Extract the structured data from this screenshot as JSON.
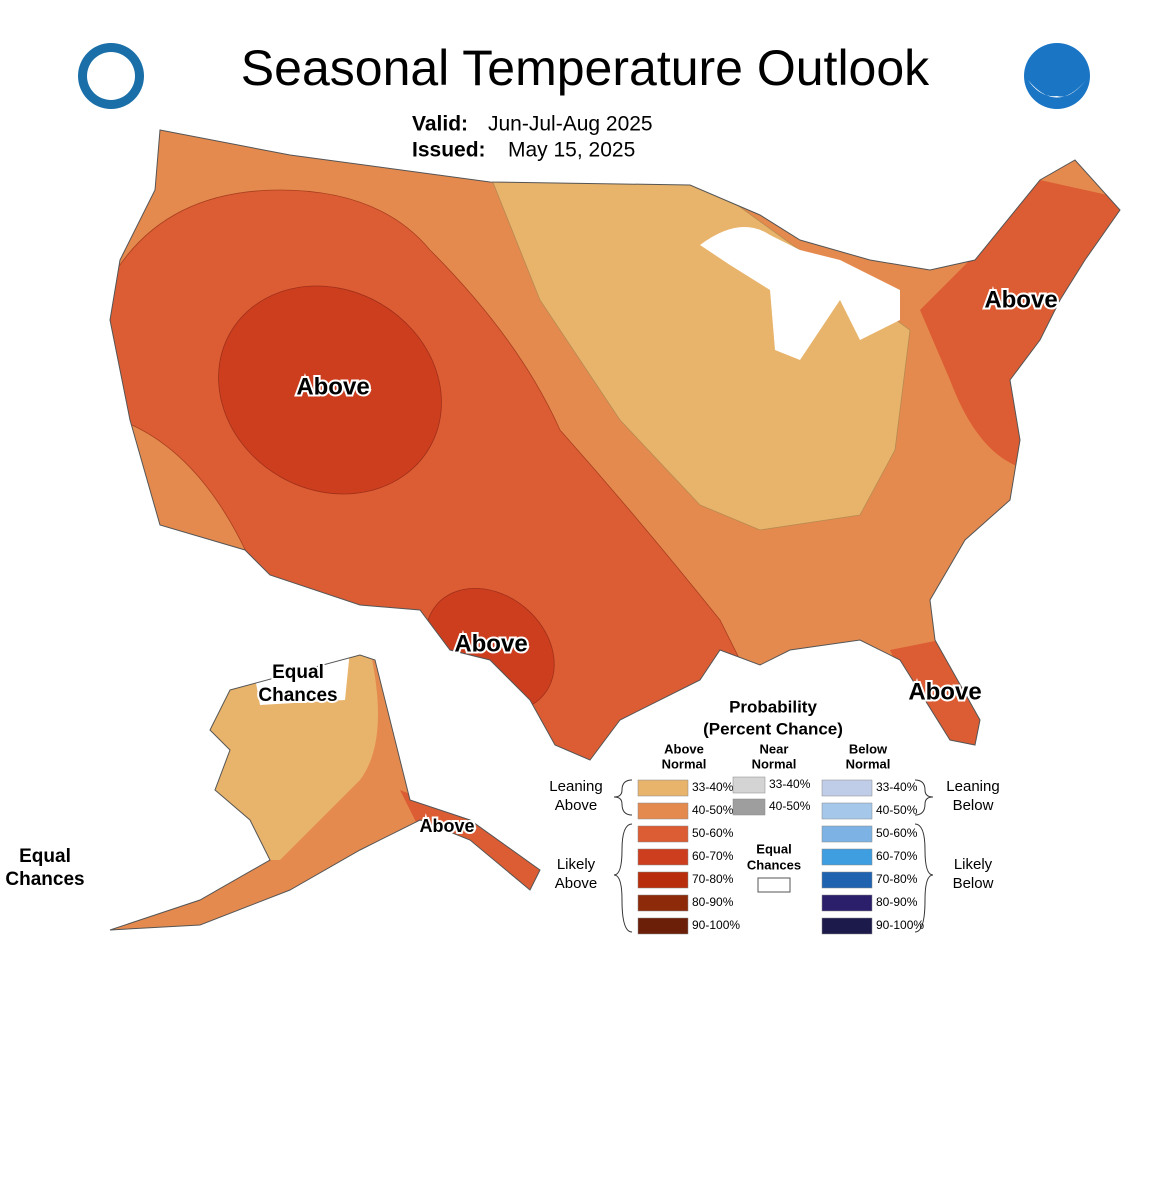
{
  "header": {
    "title": "Seasonal Temperature Outlook",
    "valid_label": "Valid:",
    "valid": "Jun-Jul-Aug 2025",
    "issued_label": "Issued:",
    "issued": "May 15, 2025"
  },
  "map_labels": [
    {
      "lines": [
        "Above"
      ]
    },
    {
      "lines": [
        "Above"
      ]
    },
    {
      "lines": [
        "Above"
      ]
    },
    {
      "lines": [
        "Above"
      ]
    },
    {
      "lines": [
        "Above"
      ]
    },
    {
      "lines": [
        "Equal",
        "Chances"
      ]
    },
    {
      "lines": [
        "Equal",
        "Chances"
      ]
    }
  ],
  "legend": {
    "title": [
      "Probability",
      "(Percent Chance)"
    ],
    "columns": [
      {
        "heading": [
          "Above",
          "Normal"
        ],
        "items": [
          {
            "label": "33-40%",
            "color": "#e8b36a"
          },
          {
            "label": "40-50%",
            "color": "#e58a4e"
          },
          {
            "label": "50-60%",
            "color": "#dc5c33"
          },
          {
            "label": "60-70%",
            "color": "#cd3e1f"
          },
          {
            "label": "70-80%",
            "color": "#b82d0b"
          },
          {
            "label": "80-90%",
            "color": "#8c2a0a"
          },
          {
            "label": "90-100%",
            "color": "#6b1e08"
          }
        ]
      },
      {
        "heading": [
          "Near",
          "Normal"
        ],
        "items": [
          {
            "label": "33-40%",
            "color": "#d4d4d4"
          },
          {
            "label": "40-50%",
            "color": "#9e9e9e"
          }
        ]
      },
      {
        "heading": [
          "Below",
          "Normal"
        ],
        "items": [
          {
            "label": "33-40%",
            "color": "#c0cde8"
          },
          {
            "label": "40-50%",
            "color": "#a4c7ea"
          },
          {
            "label": "50-60%",
            "color": "#7cb3e4"
          },
          {
            "label": "60-70%",
            "color": "#3e9ee0"
          },
          {
            "label": "70-80%",
            "color": "#1f62b0"
          },
          {
            "label": "80-90%",
            "color": "#2b1e6a"
          },
          {
            "label": "90-100%",
            "color": "#1c1a4a"
          }
        ]
      }
    ],
    "equal_chances": [
      "Equal",
      "Chances"
    ],
    "brackets": [
      {
        "lines": [
          "Leaning",
          "Above"
        ]
      },
      {
        "lines": [
          "Likely",
          "Above"
        ]
      },
      {
        "lines": [
          "Leaning",
          "Below"
        ]
      },
      {
        "lines": [
          "Likely",
          "Below"
        ]
      }
    ]
  }
}
